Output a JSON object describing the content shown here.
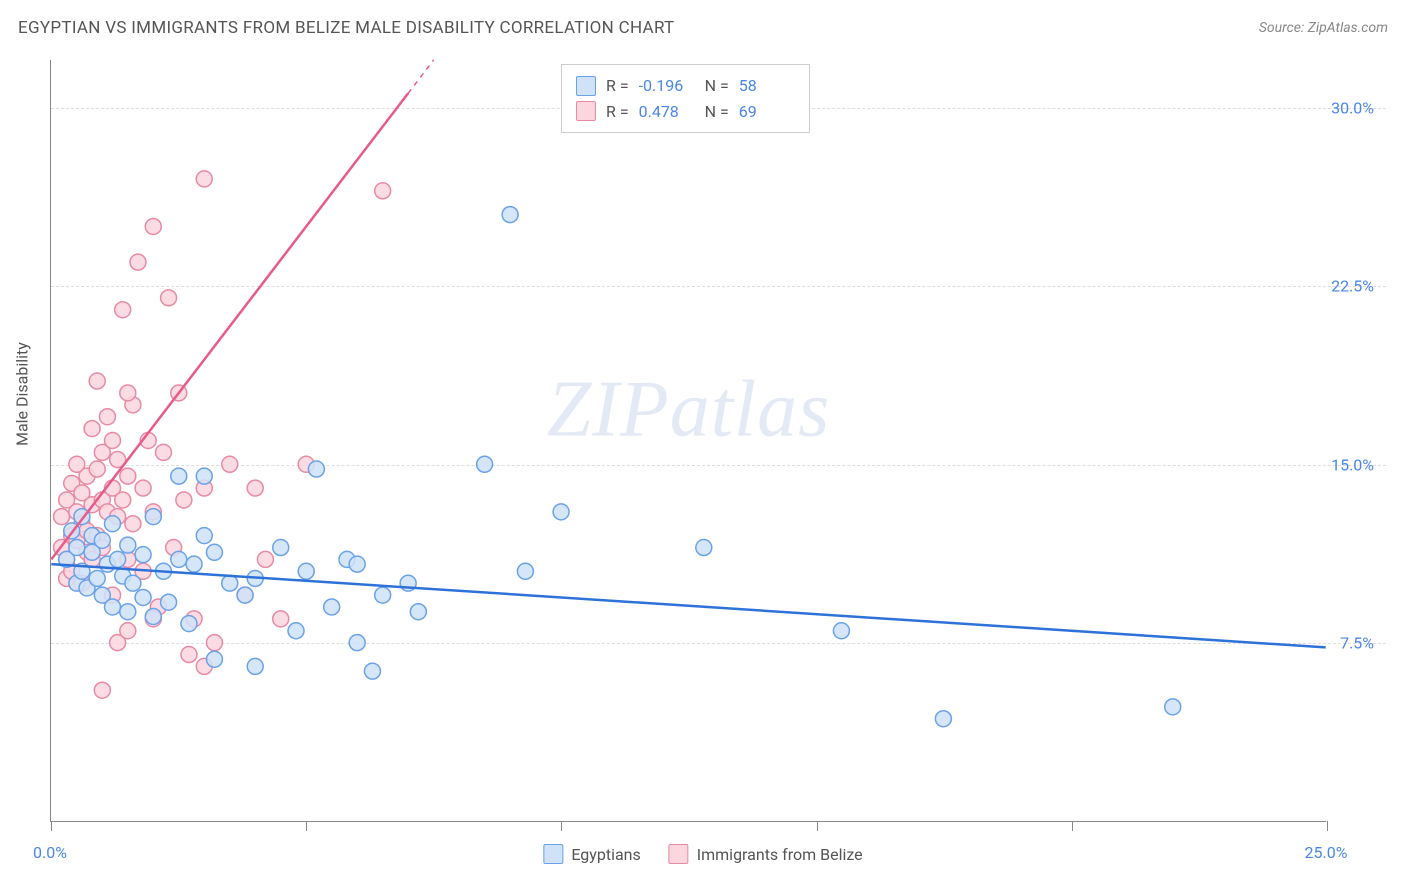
{
  "header": {
    "title": "EGYPTIAN VS IMMIGRANTS FROM BELIZE MALE DISABILITY CORRELATION CHART",
    "source": "Source: ZipAtlas.com"
  },
  "chart": {
    "type": "scatter",
    "y_axis_label": "Male Disability",
    "xlim": [
      0,
      25
    ],
    "ylim": [
      0,
      32
    ],
    "x_ticks": [
      0,
      5,
      10,
      15,
      20,
      25
    ],
    "x_tick_labels": {
      "0": "0.0%",
      "25": "25.0%"
    },
    "y_ticks": [
      7.5,
      15.0,
      22.5,
      30.0
    ],
    "y_tick_labels": [
      "7.5%",
      "15.0%",
      "22.5%",
      "30.0%"
    ],
    "grid_color": "#dddddd",
    "background_color": "#ffffff",
    "axis_color": "#888888",
    "tick_label_color": "#4a86e8",
    "marker_radius": 8,
    "marker_stroke_width": 1.5,
    "trend_line_width": 2.5,
    "series": [
      {
        "name": "Egyptians",
        "fill": "#cfe2f8",
        "stroke": "#6aa2e8",
        "line_color": "#2d72d9",
        "r": -0.196,
        "n": 58,
        "trend": {
          "x1": 0,
          "y1": 10.8,
          "x2": 25,
          "y2": 7.3
        },
        "points": [
          [
            0.3,
            11.0
          ],
          [
            0.4,
            12.2
          ],
          [
            0.5,
            10.0
          ],
          [
            0.5,
            11.5
          ],
          [
            0.6,
            12.8
          ],
          [
            0.6,
            10.5
          ],
          [
            0.7,
            9.8
          ],
          [
            0.8,
            11.3
          ],
          [
            0.8,
            12.0
          ],
          [
            0.9,
            10.2
          ],
          [
            1.0,
            11.8
          ],
          [
            1.0,
            9.5
          ],
          [
            1.1,
            10.8
          ],
          [
            1.2,
            12.5
          ],
          [
            1.2,
            9.0
          ],
          [
            1.3,
            11.0
          ],
          [
            1.4,
            10.3
          ],
          [
            1.5,
            11.6
          ],
          [
            1.5,
            8.8
          ],
          [
            1.6,
            10.0
          ],
          [
            1.8,
            9.4
          ],
          [
            1.8,
            11.2
          ],
          [
            2.0,
            12.8
          ],
          [
            2.0,
            8.6
          ],
          [
            2.2,
            10.5
          ],
          [
            2.3,
            9.2
          ],
          [
            2.5,
            14.5
          ],
          [
            2.5,
            11.0
          ],
          [
            2.7,
            8.3
          ],
          [
            2.8,
            10.8
          ],
          [
            3.0,
            12.0
          ],
          [
            3.0,
            14.5
          ],
          [
            3.2,
            6.8
          ],
          [
            3.2,
            11.3
          ],
          [
            3.5,
            10.0
          ],
          [
            3.8,
            9.5
          ],
          [
            4.0,
            6.5
          ],
          [
            4.0,
            10.2
          ],
          [
            4.5,
            11.5
          ],
          [
            4.8,
            8.0
          ],
          [
            5.0,
            10.5
          ],
          [
            5.2,
            14.8
          ],
          [
            5.5,
            9.0
          ],
          [
            5.8,
            11.0
          ],
          [
            6.0,
            7.5
          ],
          [
            6.0,
            10.8
          ],
          [
            6.3,
            6.3
          ],
          [
            6.5,
            9.5
          ],
          [
            7.0,
            10.0
          ],
          [
            7.2,
            8.8
          ],
          [
            8.5,
            15.0
          ],
          [
            9.3,
            10.5
          ],
          [
            10.0,
            13.0
          ],
          [
            12.8,
            11.5
          ],
          [
            15.5,
            8.0
          ],
          [
            17.5,
            4.3
          ],
          [
            22.0,
            4.8
          ],
          [
            9.0,
            25.5
          ]
        ]
      },
      {
        "name": "Immigrants from Belize",
        "fill": "#fbd6df",
        "stroke": "#e88aa3",
        "line_color": "#e85a8a",
        "r": 0.478,
        "n": 69,
        "trend": {
          "x1": 0,
          "y1": 11.0,
          "x2": 7.5,
          "y2": 32.0
        },
        "trend_dashed_from_x": 7.0,
        "points": [
          [
            0.2,
            11.5
          ],
          [
            0.2,
            12.8
          ],
          [
            0.3,
            10.2
          ],
          [
            0.3,
            13.5
          ],
          [
            0.3,
            11.0
          ],
          [
            0.4,
            12.0
          ],
          [
            0.4,
            14.2
          ],
          [
            0.4,
            10.5
          ],
          [
            0.5,
            13.0
          ],
          [
            0.5,
            11.8
          ],
          [
            0.5,
            15.0
          ],
          [
            0.6,
            12.5
          ],
          [
            0.6,
            10.0
          ],
          [
            0.6,
            13.8
          ],
          [
            0.7,
            11.3
          ],
          [
            0.7,
            14.5
          ],
          [
            0.7,
            12.2
          ],
          [
            0.8,
            16.5
          ],
          [
            0.8,
            13.3
          ],
          [
            0.8,
            11.0
          ],
          [
            0.9,
            14.8
          ],
          [
            0.9,
            12.0
          ],
          [
            0.9,
            18.5
          ],
          [
            1.0,
            13.5
          ],
          [
            1.0,
            15.5
          ],
          [
            1.0,
            11.5
          ],
          [
            1.1,
            17.0
          ],
          [
            1.1,
            13.0
          ],
          [
            1.2,
            14.0
          ],
          [
            1.2,
            16.0
          ],
          [
            1.2,
            9.5
          ],
          [
            1.3,
            12.8
          ],
          [
            1.3,
            15.2
          ],
          [
            1.4,
            21.5
          ],
          [
            1.4,
            13.5
          ],
          [
            1.5,
            11.0
          ],
          [
            1.5,
            14.5
          ],
          [
            1.6,
            17.5
          ],
          [
            1.6,
            12.5
          ],
          [
            1.7,
            23.5
          ],
          [
            1.8,
            14.0
          ],
          [
            1.8,
            10.5
          ],
          [
            1.9,
            16.0
          ],
          [
            2.0,
            25.0
          ],
          [
            2.0,
            13.0
          ],
          [
            2.1,
            9.0
          ],
          [
            2.2,
            15.5
          ],
          [
            2.3,
            22.0
          ],
          [
            2.4,
            11.5
          ],
          [
            2.5,
            18.0
          ],
          [
            2.6,
            13.5
          ],
          [
            2.7,
            7.0
          ],
          [
            2.8,
            8.5
          ],
          [
            3.0,
            14.0
          ],
          [
            3.0,
            6.5
          ],
          [
            3.2,
            7.5
          ],
          [
            3.5,
            15.0
          ],
          [
            3.8,
            9.5
          ],
          [
            4.0,
            14.0
          ],
          [
            4.2,
            11.0
          ],
          [
            4.5,
            8.5
          ],
          [
            5.0,
            15.0
          ],
          [
            1.0,
            5.5
          ],
          [
            1.3,
            7.5
          ],
          [
            1.5,
            8.0
          ],
          [
            2.0,
            8.5
          ],
          [
            6.5,
            26.5
          ],
          [
            3.0,
            27.0
          ],
          [
            1.5,
            18.0
          ]
        ]
      }
    ],
    "legend_labels": [
      "Egyptians",
      "Immigrants from Belize"
    ],
    "stats_labels": {
      "r": "R =",
      "n": "N ="
    },
    "watermark": {
      "zip": "ZIP",
      "atlas": "atlas"
    }
  }
}
